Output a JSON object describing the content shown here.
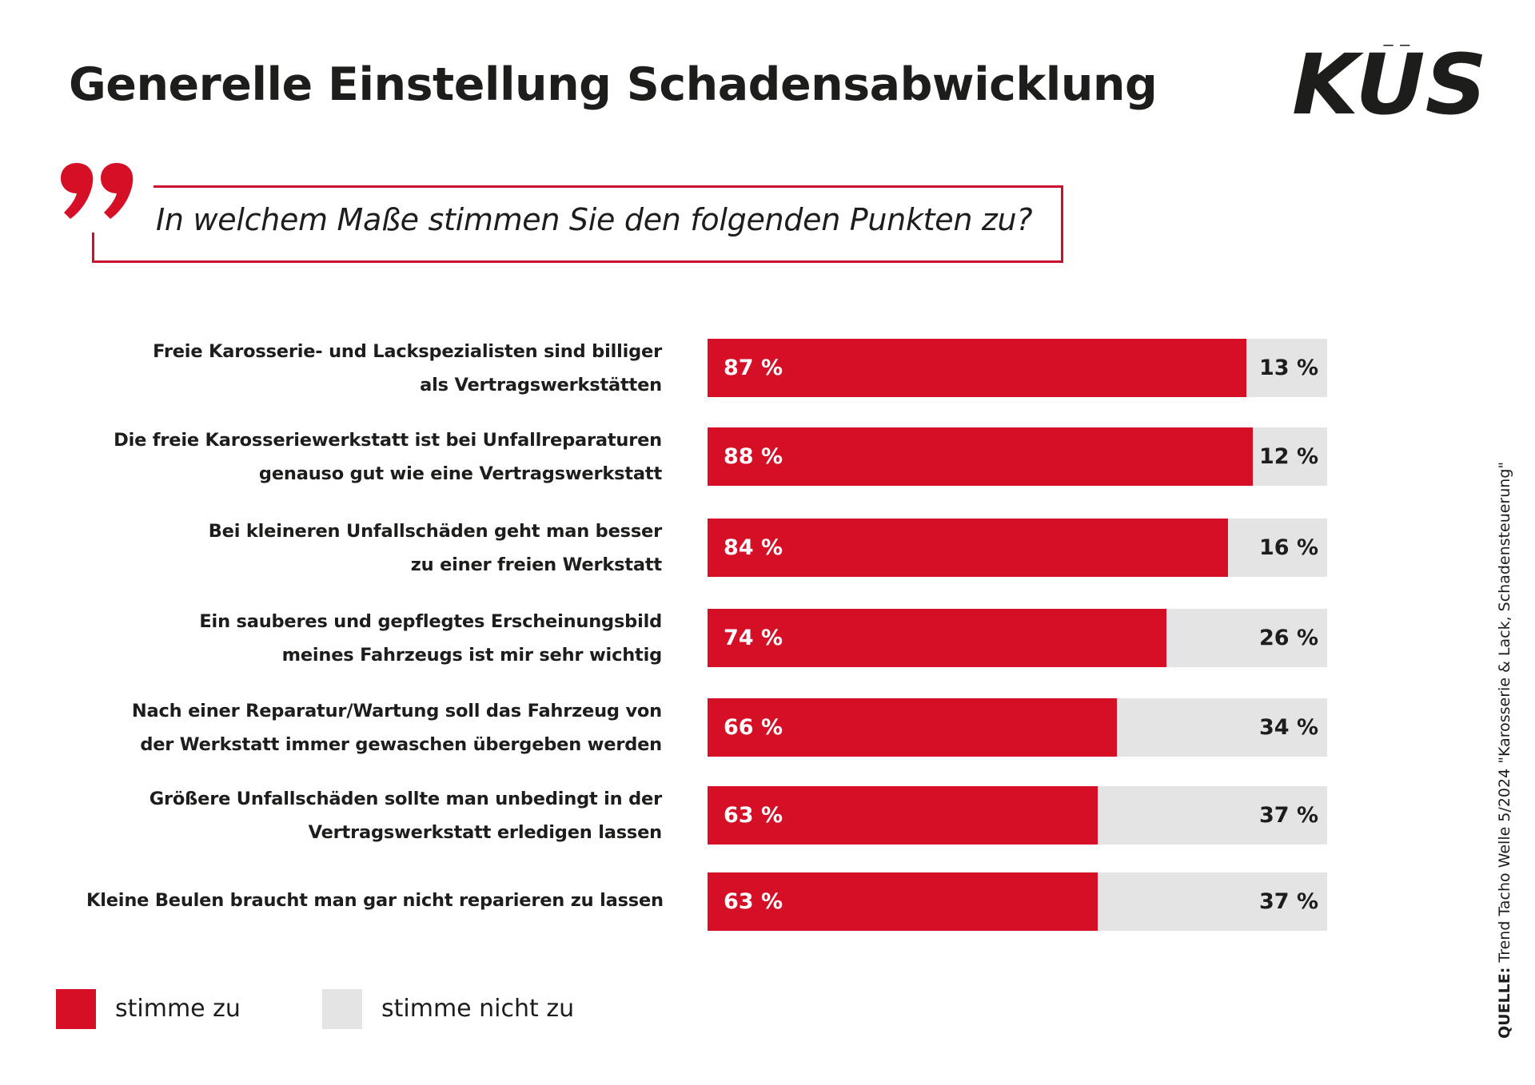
{
  "header": {
    "title": "Generelle Einstellung Schadensabwicklung",
    "logo_text": "KÜS"
  },
  "question": {
    "icon": "quote-icon",
    "text": "In welchem Maße stimmen Sie den folgenden Punkten zu?"
  },
  "colors": {
    "agree": "#d50f25",
    "disagree": "#e4e4e4",
    "accent": "#c8102e",
    "text": "#1d1d1b"
  },
  "chart_data": {
    "type": "bar",
    "orientation": "horizontal",
    "stacked": true,
    "title": "Generelle Einstellung Schadensabwicklung",
    "subtitle": "In welchem Maße stimmen Sie den folgenden Punkten zu?",
    "xlim": [
      0,
      100
    ],
    "unit": "%",
    "grid": false,
    "legend_position": "bottom-left",
    "categories": [
      [
        "Freie Karosserie- und Lackspezialisten sind billiger",
        "als Vertragswerkstätten"
      ],
      [
        "Die freie Karosseriewerkstatt ist bei Unfallreparaturen",
        "genauso gut wie eine Vertragswerkstatt"
      ],
      [
        "Bei kleineren Unfallschäden geht man besser",
        "zu einer freien Werkstatt"
      ],
      [
        "Ein sauberes und gepflegtes Erscheinungsbild",
        "meines Fahrzeugs ist mir sehr wichtig"
      ],
      [
        "Nach einer Reparatur/Wartung soll das Fahrzeug von",
        "der Werkstatt immer gewaschen übergeben werden"
      ],
      [
        "Größere Unfallschäden sollte man unbedingt in der",
        "Vertragswerkstatt erledigen lassen"
      ],
      [
        "Kleine Beulen braucht man gar nicht reparieren zu lassen"
      ]
    ],
    "series": [
      {
        "name": "stimme zu",
        "color": "#d50f25",
        "values": [
          87,
          88,
          84,
          74,
          66,
          63,
          63
        ],
        "labels": [
          "87 %",
          "88 %",
          "84 %",
          "74 %",
          "66 %",
          "63 %",
          "63 %"
        ]
      },
      {
        "name": "stimme nicht zu",
        "color": "#e4e4e4",
        "values": [
          13,
          12,
          16,
          26,
          34,
          37,
          37
        ],
        "labels": [
          "13 %",
          "12 %",
          "16 %",
          "26 %",
          "34 %",
          "37 %",
          "37 %"
        ]
      }
    ]
  },
  "legend": [
    {
      "label": "stimme zu",
      "color": "#d50f25"
    },
    {
      "label": "stimme nicht zu",
      "color": "#e4e4e4"
    }
  ],
  "source": {
    "prefix": "QUELLE:",
    "text": " Trend Tacho Welle 5/2024 \"Karosserie & Lack, Schadensteuerung\""
  }
}
